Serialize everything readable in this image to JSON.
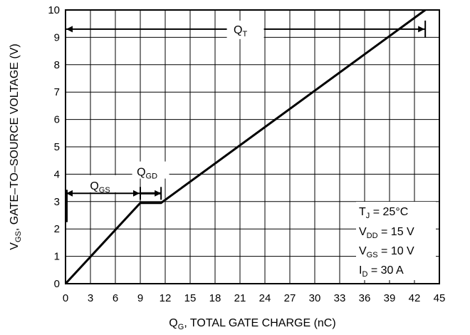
{
  "chart_data": {
    "type": "line",
    "title": "",
    "xlabel": {
      "main": "Q",
      "sub": "G",
      "rest": ", TOTAL GATE CHARGE (nC)"
    },
    "ylabel": {
      "main": "V",
      "sub": "GS",
      "rest": ", GATE–TO–SOURCE VOLTAGE (V)"
    },
    "xlim": [
      0,
      45
    ],
    "ylim": [
      0,
      10
    ],
    "grid": true,
    "x_ticks": [
      "0",
      "3",
      "6",
      "9",
      "12",
      "15",
      "18",
      "21",
      "24",
      "27",
      "30",
      "33",
      "36",
      "39",
      "42",
      "45"
    ],
    "y_ticks": [
      "0",
      "1",
      "2",
      "3",
      "4",
      "5",
      "6",
      "7",
      "8",
      "9",
      "10"
    ],
    "series": [
      {
        "x": [
          0,
          9,
          11.5,
          43.3
        ],
        "y": [
          0,
          2.95,
          2.95,
          10
        ]
      }
    ],
    "annotations": {
      "qgs": {
        "main": "Q",
        "sub": "GS",
        "x_from": 0,
        "x_to": 9,
        "y": 3.3,
        "label_y": 3.6
      },
      "qgd": {
        "main": "Q",
        "sub": "GD",
        "x_from": 9,
        "x_to": 11.5,
        "y": 3.3,
        "label_y": 4.1
      },
      "qt": {
        "main": "Q",
        "sub": "T",
        "x_from": 0,
        "x_to": 43.3,
        "y": 9.3
      }
    },
    "conditions": [
      {
        "main": "T",
        "sub": "J",
        "rest": " = 25°C"
      },
      {
        "main": "V",
        "sub": "DD",
        "rest": " = 15 V"
      },
      {
        "main": "V",
        "sub": "GS",
        "rest": " = 10 V"
      },
      {
        "main": "I",
        "sub": "D",
        "rest": " = 30 A"
      }
    ]
  }
}
